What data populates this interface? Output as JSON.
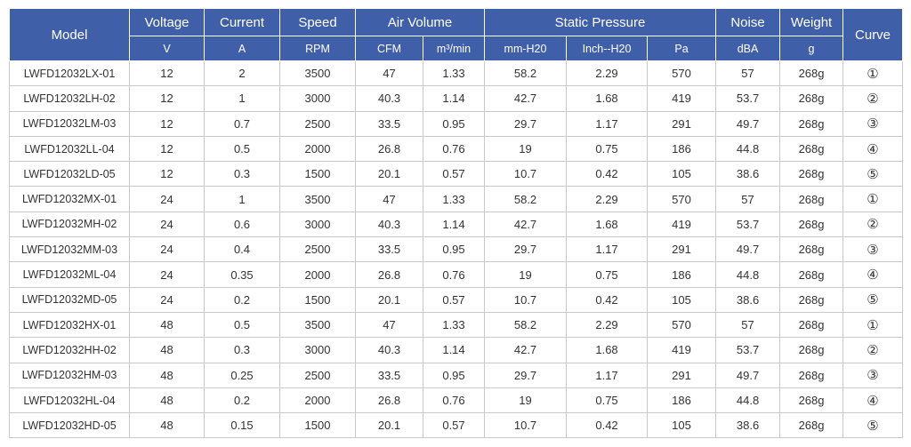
{
  "header": {
    "model": "Model",
    "voltage": "Voltage",
    "current": "Current",
    "speed": "Speed",
    "air_volume": "Air Volume",
    "static_pressure": "Static Pressure",
    "noise": "Noise",
    "weight": "Weight",
    "curve": "Curve",
    "units": [
      "V",
      "A",
      "RPM",
      "CFM",
      "m³/min",
      "mm-H20",
      "Inch--H20",
      "Pa",
      "dBA",
      "g"
    ]
  },
  "rows": [
    [
      "LWFD12032LX-01",
      "12",
      "2",
      "3500",
      "47",
      "1.33",
      "58.2",
      "2.29",
      "570",
      "57",
      "268g",
      "①"
    ],
    [
      "LWFD12032LH-02",
      "12",
      "1",
      "3000",
      "40.3",
      "1.14",
      "42.7",
      "1.68",
      "419",
      "53.7",
      "268g",
      "②"
    ],
    [
      "LWFD12032LM-03",
      "12",
      "0.7",
      "2500",
      "33.5",
      "0.95",
      "29.7",
      "1.17",
      "291",
      "49.7",
      "268g",
      "③"
    ],
    [
      "LWFD12032LL-04",
      "12",
      "0.5",
      "2000",
      "26.8",
      "0.76",
      "19",
      "0.75",
      "186",
      "44.8",
      "268g",
      "④"
    ],
    [
      "LWFD12032LD-05",
      "12",
      "0.3",
      "1500",
      "20.1",
      "0.57",
      "10.7",
      "0.42",
      "105",
      "38.6",
      "268g",
      "⑤"
    ],
    [
      "LWFD12032MX-01",
      "24",
      "1",
      "3500",
      "47",
      "1.33",
      "58.2",
      "2.29",
      "570",
      "57",
      "268g",
      "①"
    ],
    [
      "LWFD12032MH-02",
      "24",
      "0.6",
      "3000",
      "40.3",
      "1.14",
      "42.7",
      "1.68",
      "419",
      "53.7",
      "268g",
      "②"
    ],
    [
      "LWFD12032MM-03",
      "24",
      "0.4",
      "2500",
      "33.5",
      "0.95",
      "29.7",
      "1.17",
      "291",
      "49.7",
      "268g",
      "③"
    ],
    [
      "LWFD12032ML-04",
      "24",
      "0.35",
      "2000",
      "26.8",
      "0.76",
      "19",
      "0.75",
      "186",
      "44.8",
      "268g",
      "④"
    ],
    [
      "LWFD12032MD-05",
      "24",
      "0.2",
      "1500",
      "20.1",
      "0.57",
      "10.7",
      "0.42",
      "105",
      "38.6",
      "268g",
      "⑤"
    ],
    [
      "LWFD12032HX-01",
      "48",
      "0.5",
      "3500",
      "47",
      "1.33",
      "58.2",
      "2.29",
      "570",
      "57",
      "268g",
      "①"
    ],
    [
      "LWFD12032HH-02",
      "48",
      "0.3",
      "3000",
      "40.3",
      "1.14",
      "42.7",
      "1.68",
      "419",
      "53.7",
      "268g",
      "②"
    ],
    [
      "LWFD12032HM-03",
      "48",
      "0.25",
      "2500",
      "33.5",
      "0.95",
      "29.7",
      "1.17",
      "291",
      "49.7",
      "268g",
      "③"
    ],
    [
      "LWFD12032HL-04",
      "48",
      "0.2",
      "2000",
      "26.8",
      "0.76",
      "19",
      "0.75",
      "186",
      "44.8",
      "268g",
      "④"
    ],
    [
      "LWFD12032HD-05",
      "48",
      "0.15",
      "1500",
      "20.1",
      "0.57",
      "10.7",
      "0.42",
      "105",
      "38.6",
      "268g",
      "⑤"
    ]
  ],
  "colors": {
    "header_bg": "#3f5fa9",
    "header_text": "#ffffff",
    "grid": "#c9c9c9",
    "body_text": "#333333"
  }
}
